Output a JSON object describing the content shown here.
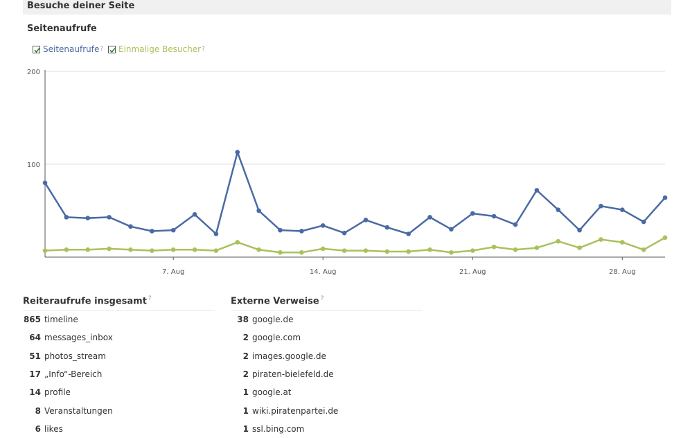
{
  "header": {
    "title": "Besuche deiner Seite"
  },
  "chart_data": {
    "type": "line",
    "title": "Seitenaufrufe",
    "legend": [
      {
        "label": "Seitenaufrufe",
        "checked": true,
        "color": "#4a6aa5"
      },
      {
        "label": "Einmalige Besucher",
        "checked": true,
        "color": "#a9c15c"
      }
    ],
    "help_marker": "?",
    "ylim": [
      0,
      200
    ],
    "yticks": [
      "200",
      "100"
    ],
    "ytick_values": [
      200,
      100
    ],
    "xticks": [
      "7. Aug",
      "14. Aug",
      "21. Aug",
      "28. Aug"
    ],
    "xtick_indices": [
      6,
      13,
      20,
      27
    ],
    "x_count": 30,
    "series": [
      {
        "name": "Seitenaufrufe",
        "color": "#4a6aa5",
        "values": [
          80,
          43,
          42,
          43,
          33,
          28,
          29,
          46,
          25,
          113,
          50,
          29,
          28,
          34,
          26,
          40,
          32,
          25,
          43,
          30,
          47,
          44,
          35,
          72,
          51,
          29,
          55,
          51,
          38,
          64
        ]
      },
      {
        "name": "Einmalige Besucher",
        "color": "#a9c15c",
        "values": [
          7,
          8,
          8,
          9,
          8,
          7,
          8,
          8,
          7,
          16,
          8,
          5,
          5,
          9,
          7,
          7,
          6,
          6,
          8,
          5,
          7,
          11,
          8,
          10,
          17,
          10,
          19,
          16,
          8,
          21
        ]
      }
    ]
  },
  "tabs_table": {
    "title": "Reiteraufrufe insgesamt",
    "rows": [
      {
        "count": "865",
        "label": "timeline"
      },
      {
        "count": "64",
        "label": "messages_inbox"
      },
      {
        "count": "51",
        "label": "photos_stream"
      },
      {
        "count": "17",
        "label": "„Info“-Bereich"
      },
      {
        "count": "14",
        "label": "profile"
      },
      {
        "count": "8",
        "label": "Veranstaltungen"
      },
      {
        "count": "6",
        "label": "likes"
      }
    ]
  },
  "referrers_table": {
    "title": "Externe Verweise",
    "rows": [
      {
        "count": "38",
        "label": "google.de"
      },
      {
        "count": "2",
        "label": "google.com"
      },
      {
        "count": "2",
        "label": "images.google.de"
      },
      {
        "count": "2",
        "label": "piraten-bielefeld.de"
      },
      {
        "count": "1",
        "label": "google.at"
      },
      {
        "count": "1",
        "label": "wiki.piratenpartei.de"
      },
      {
        "count": "1",
        "label": "ssl.bing.com"
      }
    ]
  }
}
